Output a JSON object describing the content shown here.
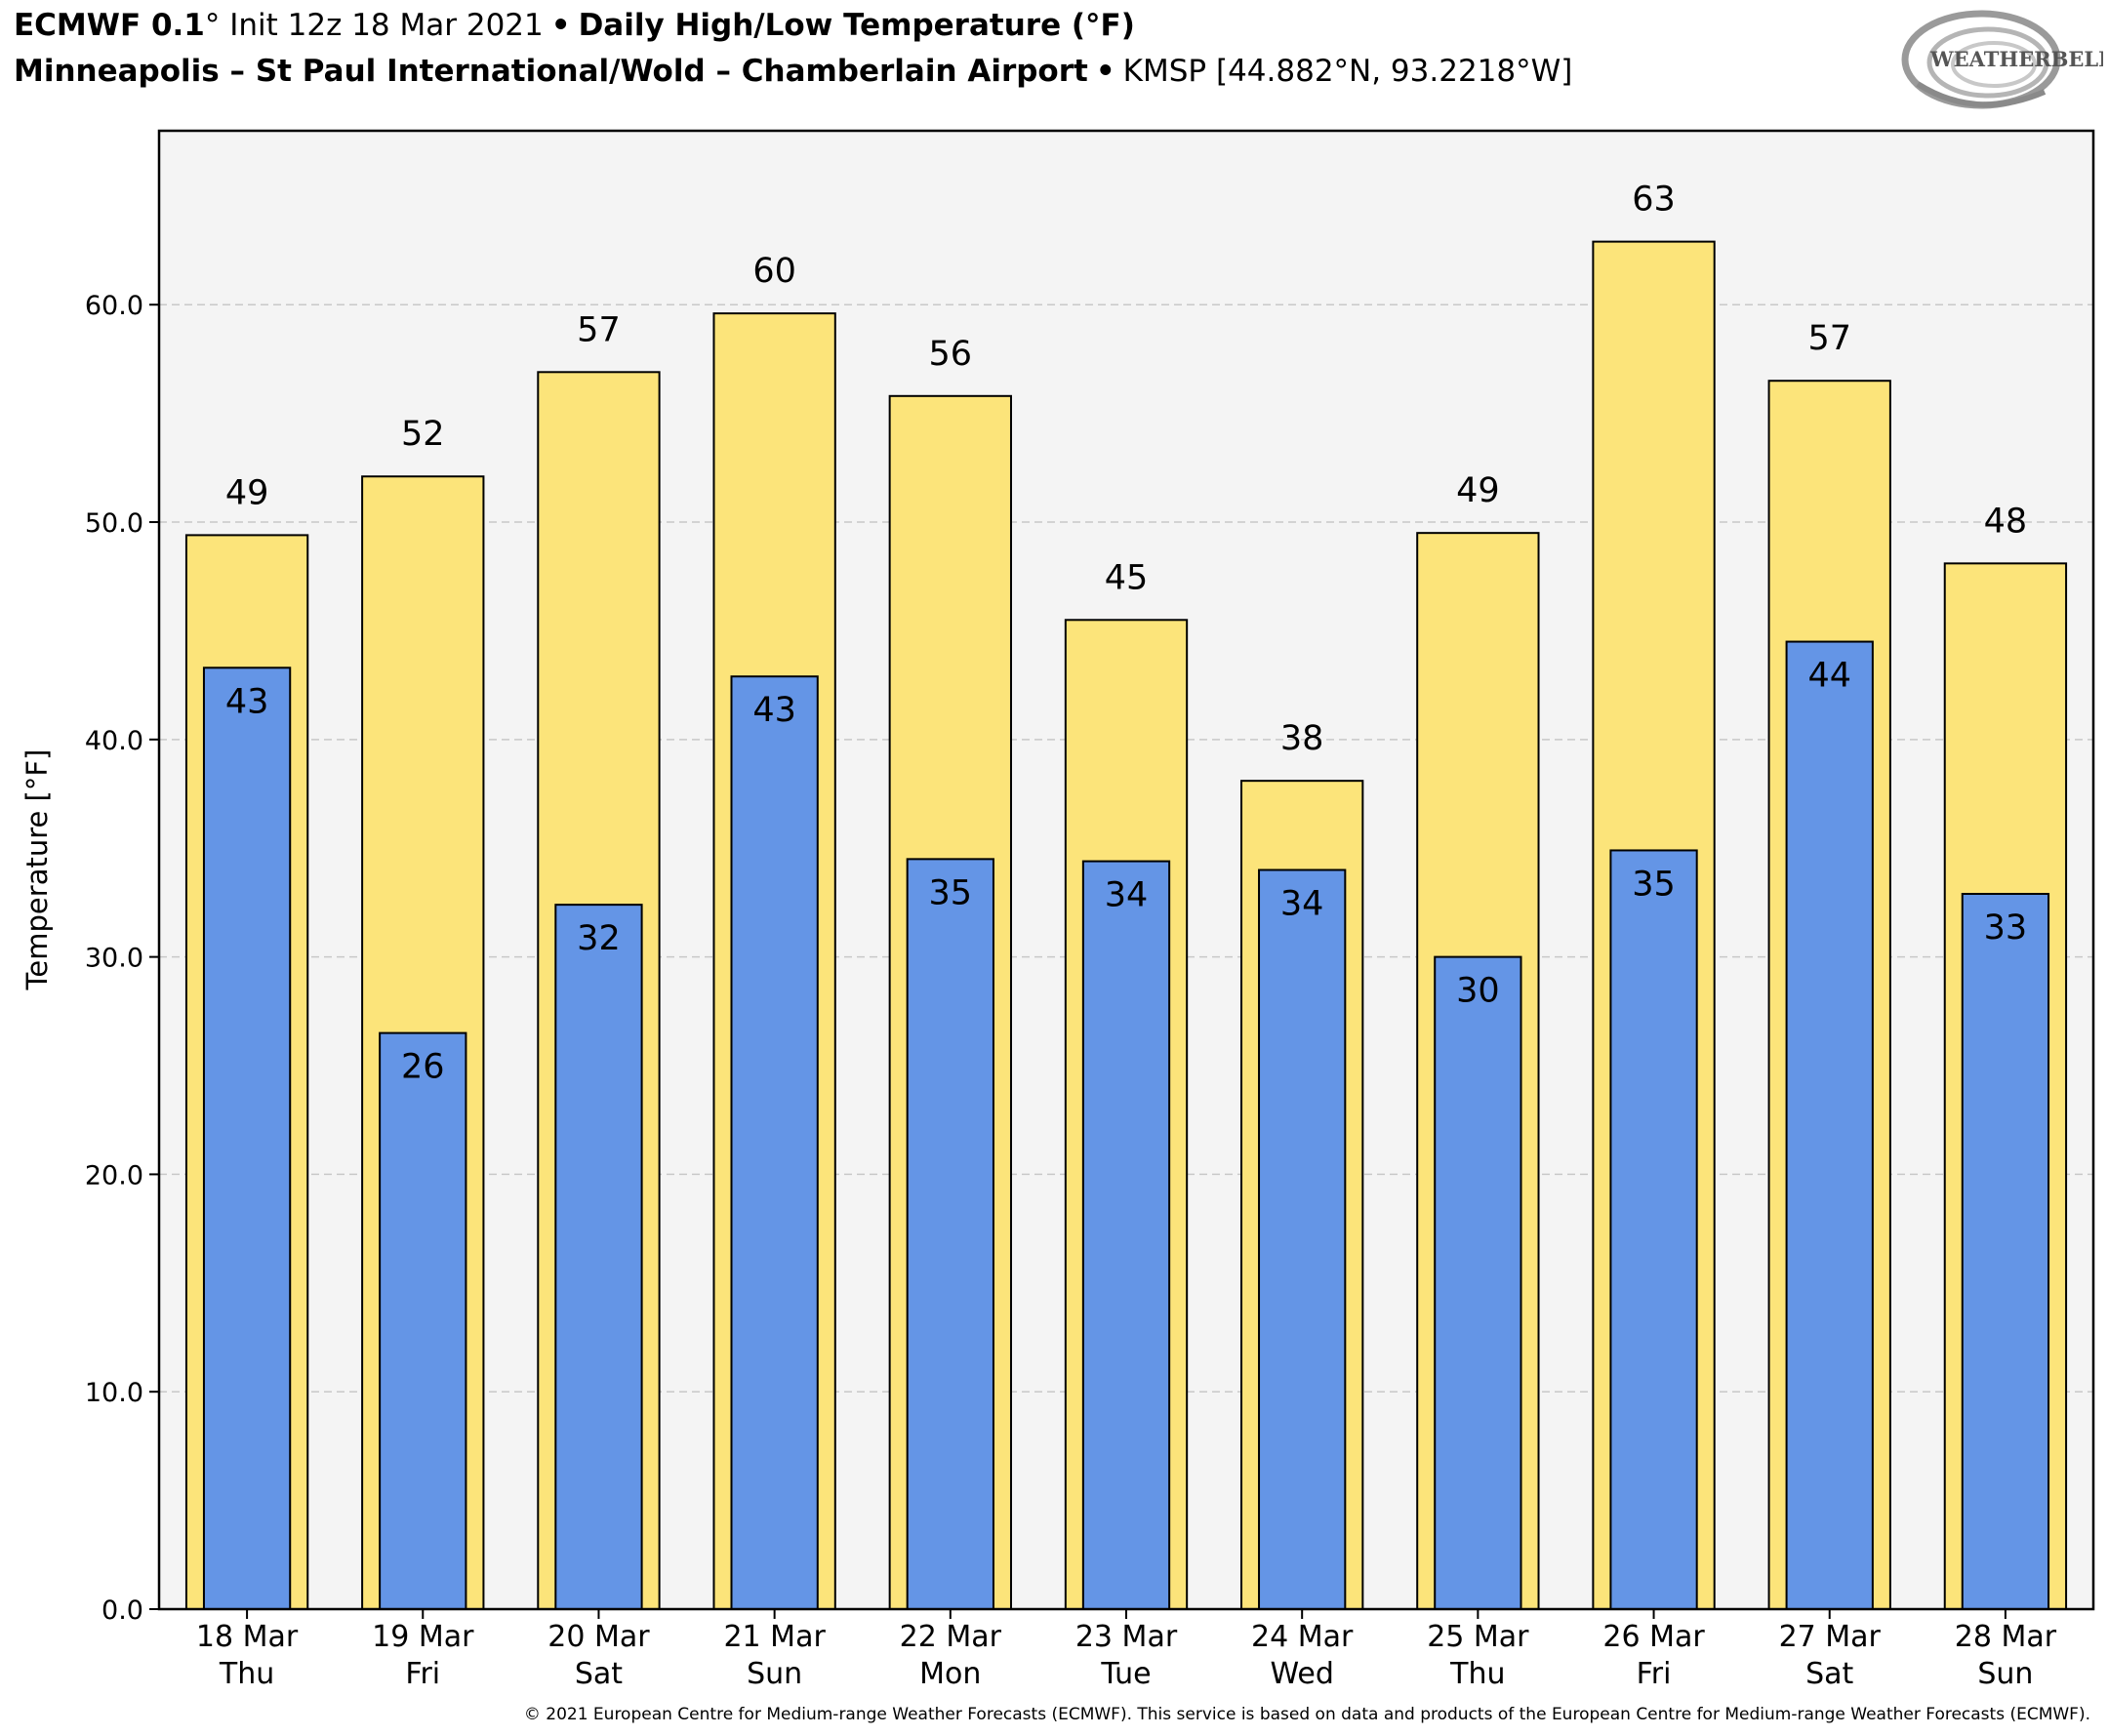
{
  "header": {
    "model": "ECMWF 0.1",
    "degree_symbol": "°",
    "init": "Init 12z 18 Mar 2021",
    "bullet": "•",
    "product": "Daily High/Low Temperature (°F)",
    "station_name": "Minneapolis – St Paul International/Wold – Chamberlain Airport",
    "station_info": "KMSP [44.882°N, 93.2218°W]"
  },
  "logo": {
    "text": "WEATHERBELL",
    "icon": "weatherbell-swirl-logo"
  },
  "footer": {
    "copyright": "© 2021 European Centre for Medium-range Weather Forecasts (ECMWF). This service is based on data and products of the European Centre for Medium-range Weather Forecasts (ECMWF)."
  },
  "chart_data": {
    "type": "bar",
    "ylabel": "Temperature [°F]",
    "xlabel": "",
    "ylim": [
      0,
      68
    ],
    "yticks": [
      0,
      10,
      20,
      30,
      40,
      50,
      60
    ],
    "ytick_labels": [
      "0.0",
      "10.0",
      "20.0",
      "30.0",
      "40.0",
      "50.0",
      "60.0"
    ],
    "grid": true,
    "categories": [
      [
        "18 Mar",
        "Thu"
      ],
      [
        "19 Mar",
        "Fri"
      ],
      [
        "20 Mar",
        "Sat"
      ],
      [
        "21 Mar",
        "Sun"
      ],
      [
        "22 Mar",
        "Mon"
      ],
      [
        "23 Mar",
        "Tue"
      ],
      [
        "24 Mar",
        "Wed"
      ],
      [
        "25 Mar",
        "Thu"
      ],
      [
        "26 Mar",
        "Fri"
      ],
      [
        "27 Mar",
        "Sat"
      ],
      [
        "28 Mar",
        "Sun"
      ]
    ],
    "series": [
      {
        "role": "high",
        "color": "#fce47a",
        "values": [
          49.4,
          52.1,
          56.9,
          59.6,
          55.8,
          45.5,
          38.1,
          49.5,
          62.9,
          56.5,
          48.1
        ],
        "labels": [
          "49",
          "52",
          "57",
          "60",
          "56",
          "45",
          "38",
          "49",
          "63",
          "57",
          "48"
        ]
      },
      {
        "role": "low",
        "color": "#6495e6",
        "values": [
          43.3,
          26.5,
          32.4,
          42.9,
          34.5,
          34.4,
          34.0,
          30.0,
          34.9,
          44.5,
          32.9
        ],
        "labels": [
          "43",
          "26",
          "32",
          "43",
          "35",
          "34",
          "34",
          "30",
          "35",
          "44",
          "33"
        ]
      }
    ]
  }
}
